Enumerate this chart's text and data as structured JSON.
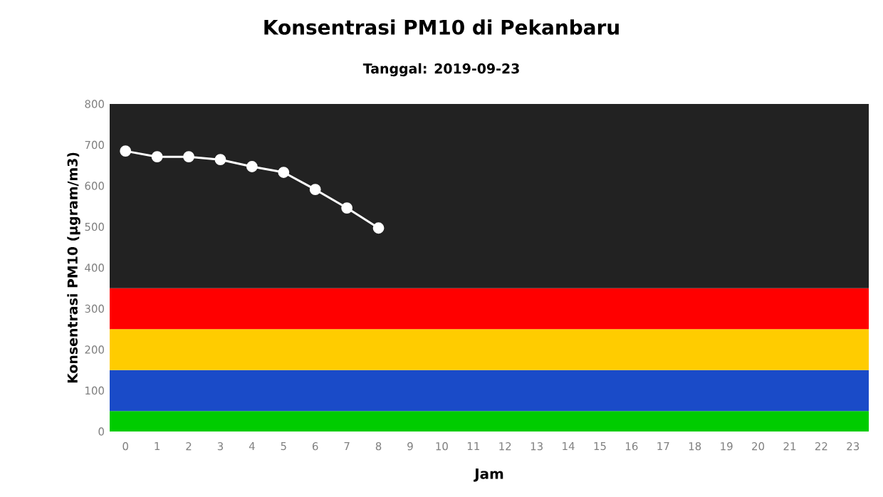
{
  "chart_data": {
    "type": "line",
    "title": "Konsentrasi PM10 di Pekanbaru",
    "subtitle": "Tanggal: 2019-09-23",
    "xlabel": "Jam",
    "ylabel": "Konsentrasi PM10 (µgram/m3)",
    "categories": [
      "0",
      "1",
      "2",
      "3",
      "4",
      "5",
      "6",
      "7",
      "8",
      "9",
      "10",
      "11",
      "12",
      "13",
      "14",
      "15",
      "16",
      "17",
      "18",
      "19",
      "20",
      "21",
      "22",
      "23"
    ],
    "series": [
      {
        "color": "#ffffff",
        "values": [
          685,
          671,
          671,
          664,
          647,
          633,
          591,
          546,
          497,
          null,
          null,
          null,
          null,
          null,
          null,
          null,
          null,
          null,
          null,
          null,
          null,
          null,
          null,
          null
        ]
      }
    ],
    "ylim": [
      0,
      800
    ],
    "yticks": [
      0,
      100,
      200,
      300,
      400,
      500,
      600,
      700,
      800
    ],
    "marker": "circle",
    "line_style": "solid",
    "bands": [
      {
        "axis": "y",
        "from": 0,
        "to": 50,
        "color": "#00cc00"
      },
      {
        "axis": "y",
        "from": 50,
        "to": 150,
        "color": "#1a4bc8"
      },
      {
        "axis": "y",
        "from": 150,
        "to": 250,
        "color": "#ffcc00"
      },
      {
        "axis": "y",
        "from": 250,
        "to": 350,
        "color": "#ff0000"
      },
      {
        "axis": "y",
        "from": 350,
        "to": 800,
        "color": "#222222"
      }
    ]
  }
}
